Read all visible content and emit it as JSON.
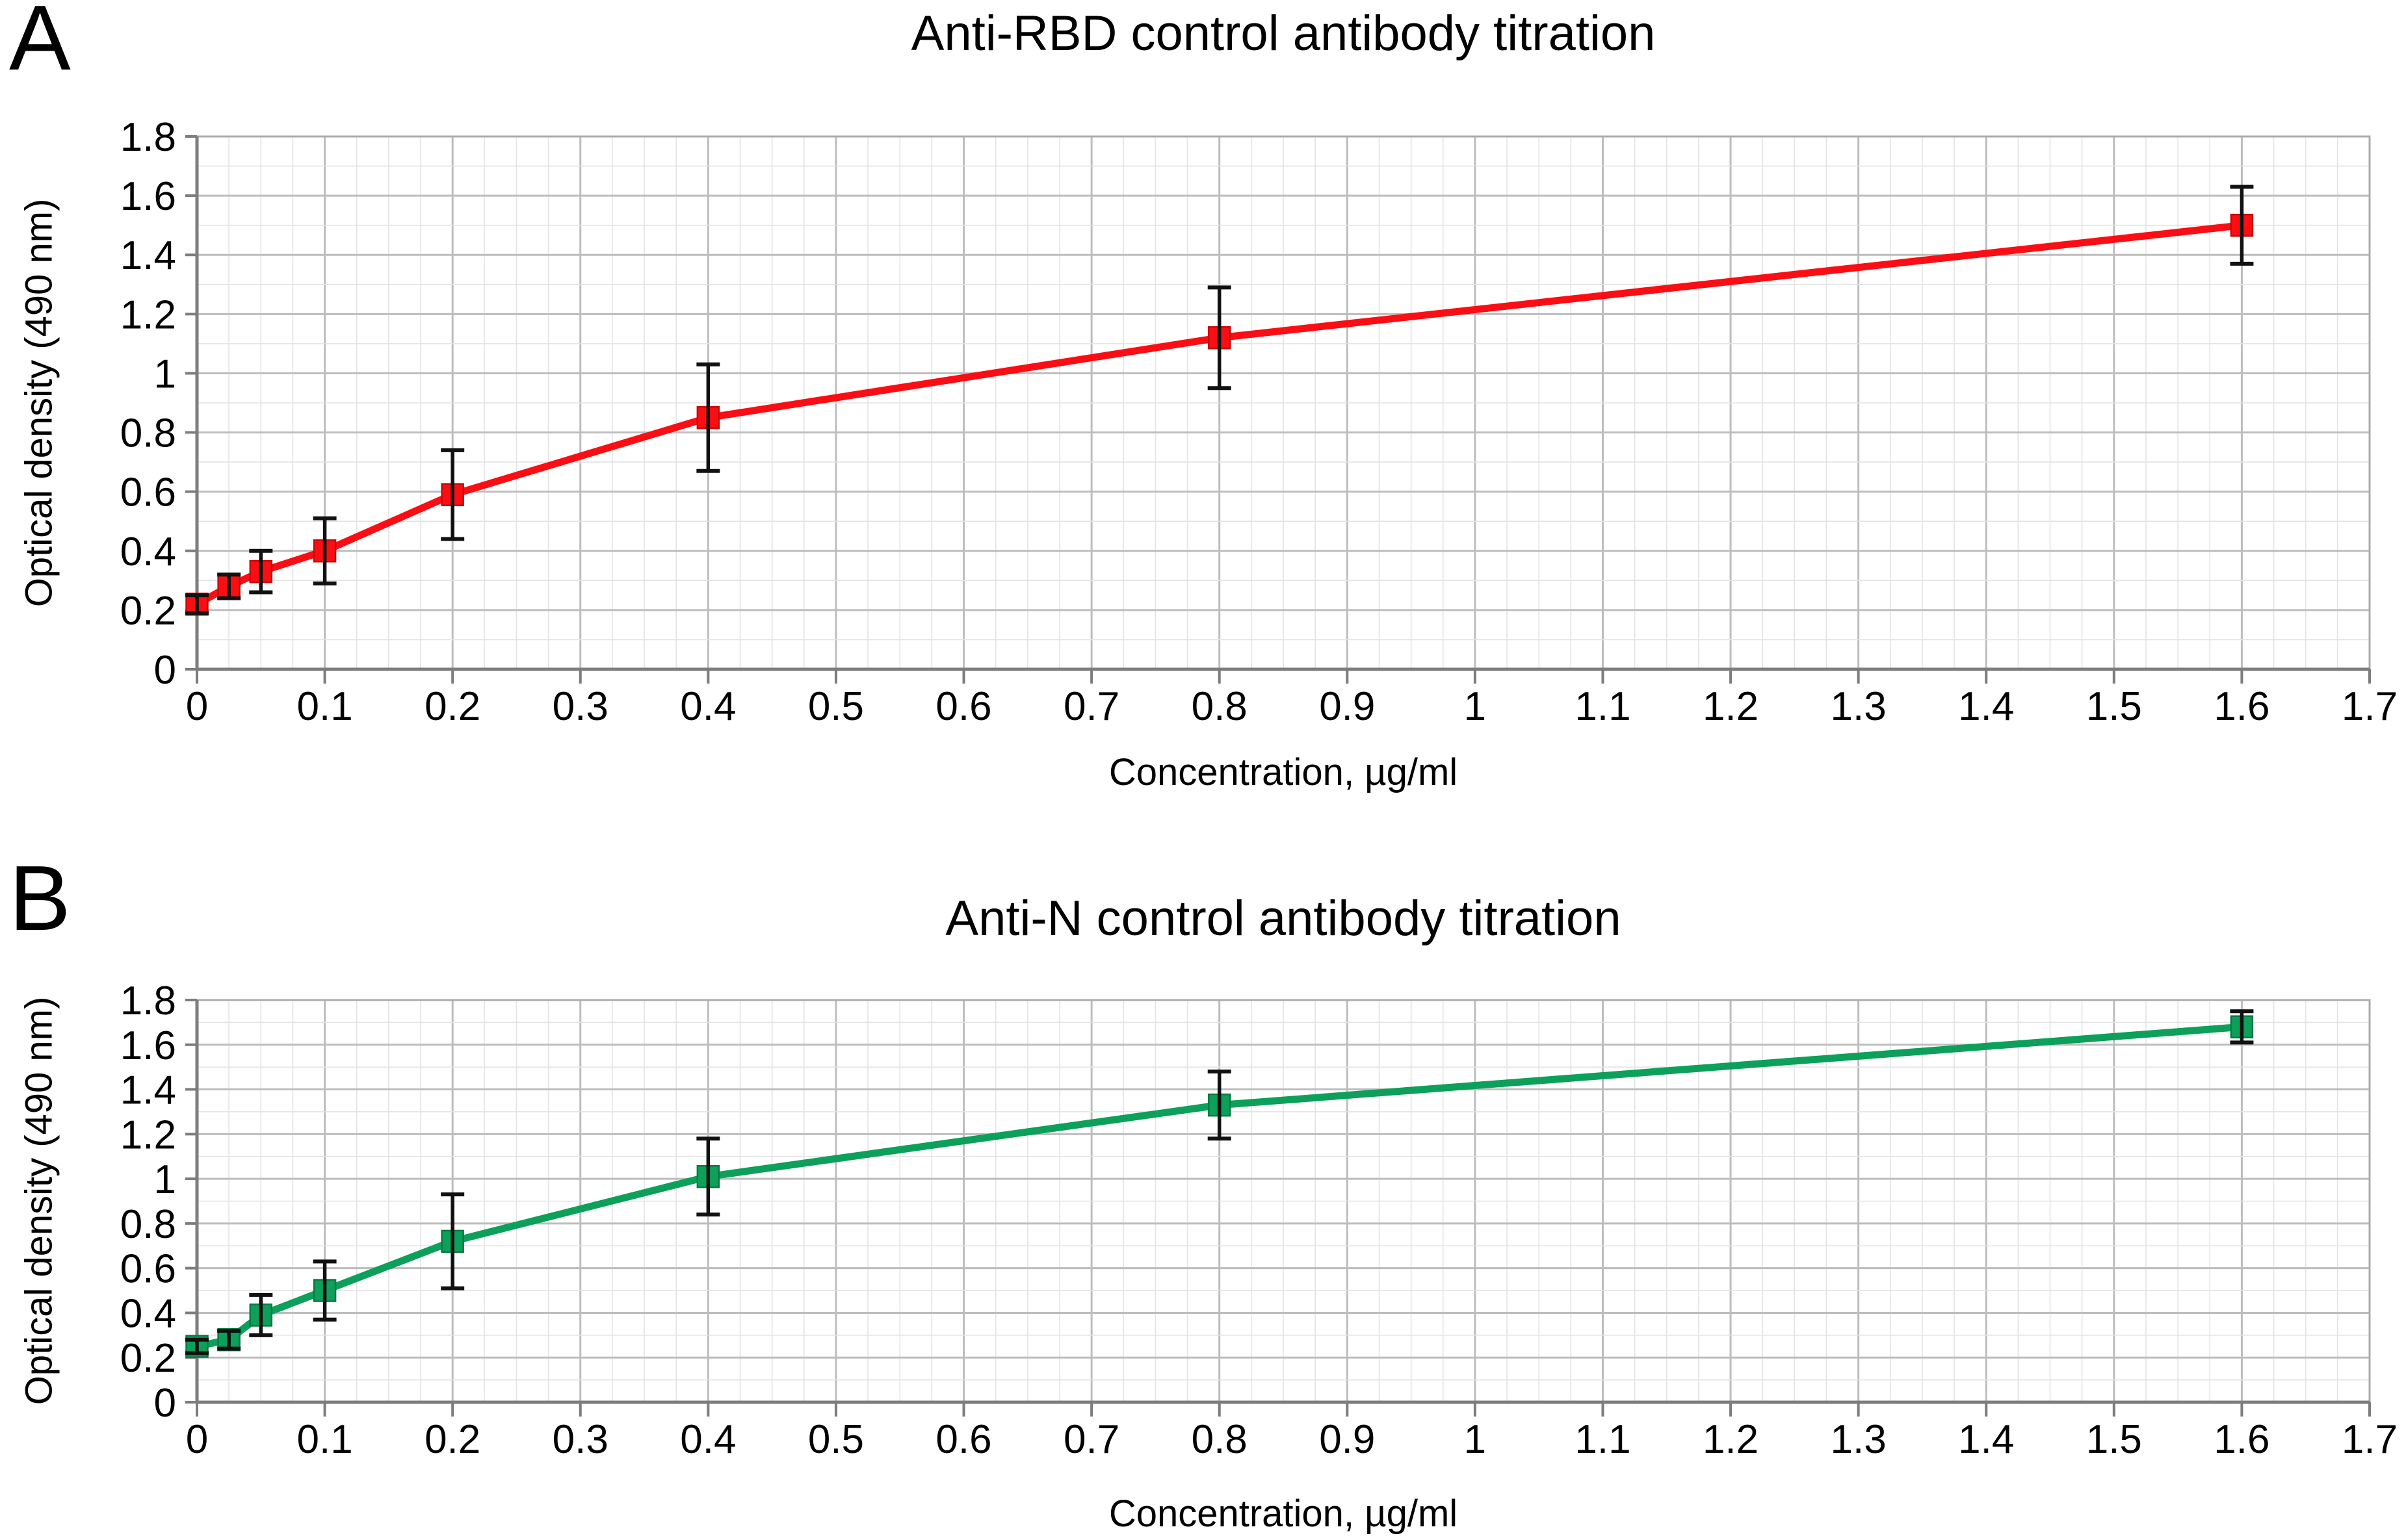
{
  "chart_data": [
    {
      "type": "line",
      "panel_label": "A",
      "title": "Anti-RBD control antibody titration",
      "xlabel": "Concentration, µg/ml",
      "ylabel": "Optical density (490 nm)",
      "xlim": [
        0,
        1.7
      ],
      "ylim": [
        0,
        1.8
      ],
      "x_tick_labels": [
        "0",
        "0.1",
        "0.2",
        "0.3",
        "0.4",
        "0.5",
        "0.6",
        "0.7",
        "0.8",
        "0.9",
        "1",
        "1.1",
        "1.2",
        "1.3",
        "1.4",
        "1.5",
        "1.6",
        "1.7"
      ],
      "y_tick_labels": [
        "0",
        "0.2",
        "0.4",
        "0.6",
        "0.8",
        "1",
        "1.2",
        "1.4",
        "1.6",
        "1.8"
      ],
      "x_major_step": 0.1,
      "x_minor_step": 0.025,
      "y_major_step": 0.2,
      "y_minor_step": 0.1,
      "grid": true,
      "legend": "none",
      "series": [
        {
          "color": "#fa0e14",
          "marker": "square",
          "marker_edge_color": "#c50b0b",
          "error_bar_color": "#111111",
          "x": [
            0,
            0.025,
            0.05,
            0.1,
            0.2,
            0.4,
            0.8,
            1.6
          ],
          "y": [
            0.22,
            0.28,
            0.33,
            0.4,
            0.59,
            0.85,
            1.12,
            1.5
          ],
          "yerr": [
            0.03,
            0.04,
            0.07,
            0.11,
            0.15,
            0.18,
            0.17,
            0.13
          ]
        }
      ]
    },
    {
      "type": "line",
      "panel_label": "B",
      "title": "Anti-N control antibody titration",
      "xlabel": "Concentration, µg/ml",
      "ylabel": "Optical density (490 nm)",
      "xlim": [
        0,
        1.7
      ],
      "ylim": [
        0,
        1.8
      ],
      "x_tick_labels": [
        "0",
        "0.1",
        "0.2",
        "0.3",
        "0.4",
        "0.5",
        "0.6",
        "0.7",
        "0.8",
        "0.9",
        "1",
        "1.1",
        "1.2",
        "1.3",
        "1.4",
        "1.5",
        "1.6",
        "1.7"
      ],
      "y_tick_labels": [
        "0",
        "0.2",
        "0.4",
        "0.6",
        "0.8",
        "1",
        "1.2",
        "1.4",
        "1.6",
        "1.8"
      ],
      "x_major_step": 0.1,
      "x_minor_step": 0.025,
      "y_major_step": 0.2,
      "y_minor_step": 0.1,
      "grid": true,
      "legend": "none",
      "series": [
        {
          "color": "#0ca05a",
          "marker": "square",
          "marker_edge_color": "#077a42",
          "error_bar_color": "#111111",
          "x": [
            0,
            0.025,
            0.05,
            0.1,
            0.2,
            0.4,
            0.8,
            1.6
          ],
          "y": [
            0.25,
            0.28,
            0.39,
            0.5,
            0.72,
            1.01,
            1.33,
            1.68
          ],
          "yerr": [
            0.03,
            0.04,
            0.09,
            0.13,
            0.21,
            0.17,
            0.15,
            0.07
          ]
        }
      ]
    }
  ],
  "style_colors": {
    "grid_minor": "#e3e3e3",
    "grid_major": "#bdbdbd",
    "plot_border": "#ababab",
    "axis_line": "#7d7d7d",
    "tick_mark": "#7d7d7d"
  }
}
